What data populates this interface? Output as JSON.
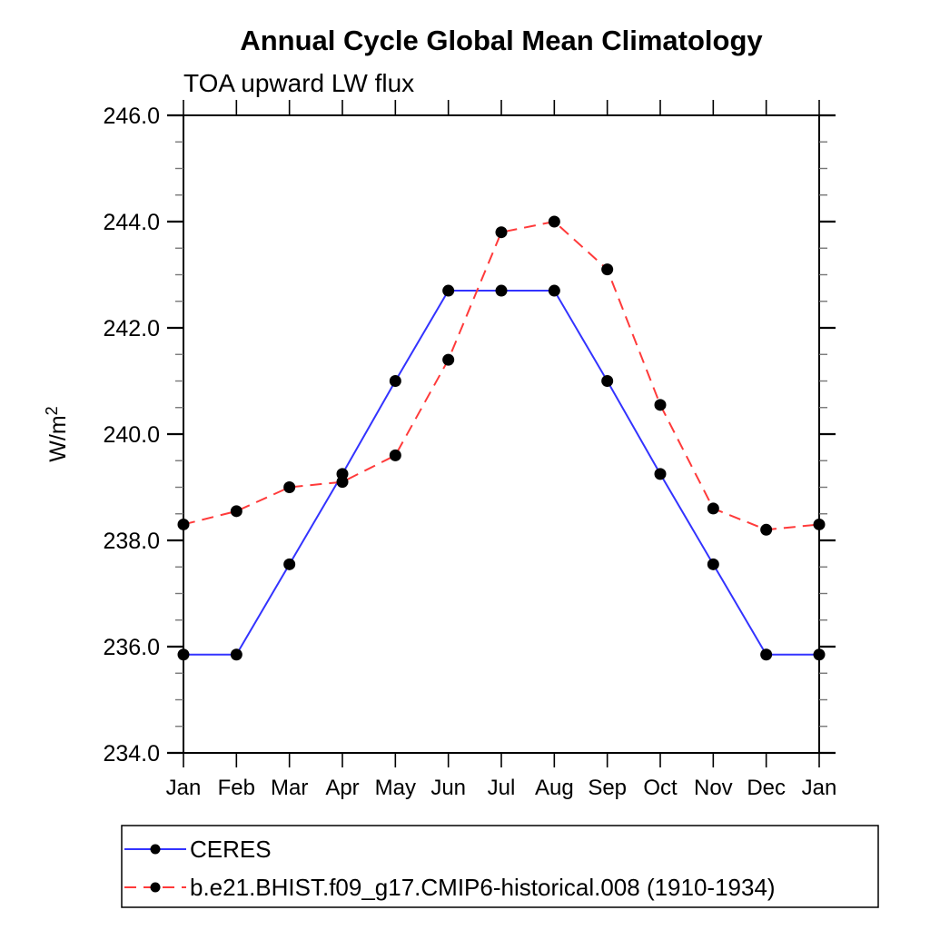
{
  "title": "Annual Cycle Global Mean Climatology",
  "subtitle": "TOA upward LW flux",
  "chart_data": {
    "type": "line",
    "title": "Annual Cycle Global Mean Climatology",
    "subtitle": "TOA upward LW flux",
    "ylabel": "W/m²",
    "xlabel": "",
    "categories": [
      "Jan",
      "Feb",
      "Mar",
      "Apr",
      "May",
      "Jun",
      "Jul",
      "Aug",
      "Sep",
      "Oct",
      "Nov",
      "Dec",
      "Jan"
    ],
    "ylim": [
      234.0,
      246.0
    ],
    "ytick_major": 2.0,
    "ytick_minor": 0.5,
    "ytick_labels": [
      "234.0",
      "236.0",
      "238.0",
      "240.0",
      "242.0",
      "244.0",
      "246.0"
    ],
    "grid": false,
    "frame": "box",
    "tick_direction": "out",
    "legend_position": "bottom-left",
    "axis_color": "#000000",
    "minor_tick_color": "#777777",
    "marker_color": "#000000",
    "series": [
      {
        "name": "CERES",
        "color": "#3333ff",
        "style": "solid",
        "marker": "circle",
        "values": [
          235.85,
          235.85,
          237.55,
          239.25,
          241.0,
          242.7,
          242.7,
          242.7,
          241.0,
          239.25,
          237.55,
          235.85,
          235.85
        ]
      },
      {
        "name": "b.e21.BHIST.f09_g17.CMIP6-historical.008 (1910-1934)",
        "color": "#ff3a3a",
        "style": "dashed",
        "marker": "circle",
        "values": [
          238.3,
          238.55,
          239.0,
          239.1,
          239.6,
          241.4,
          243.8,
          244.0,
          243.1,
          240.55,
          238.6,
          238.2,
          238.3
        ]
      }
    ]
  }
}
